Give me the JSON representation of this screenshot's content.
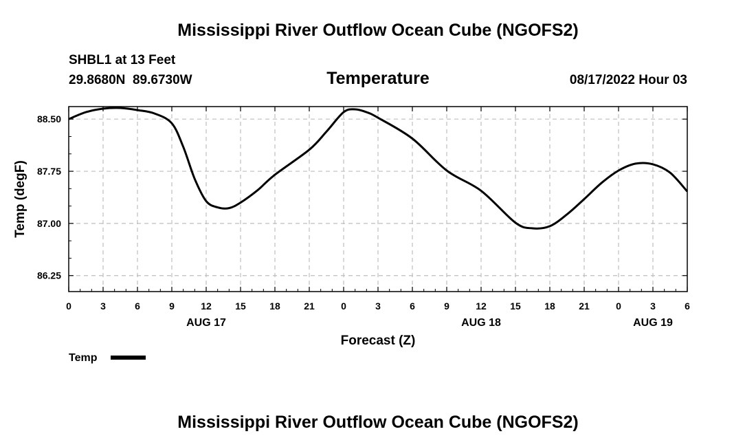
{
  "title": "Mississippi River Outflow Ocean Cube (NGOFS2)",
  "station": {
    "name": "SHBL1 at 13 Feet",
    "coords": "29.8680N  89.6730W"
  },
  "run_time": "08/17/2022 Hour 03",
  "footer_title": "Mississippi River Outflow Ocean Cube (NGOFS2)",
  "chart_data": {
    "type": "line",
    "title": "Temperature",
    "xlabel": "Forecast (Z)",
    "ylabel": "Temp (degF)",
    "xlim": [
      0,
      54
    ],
    "ylim": [
      86.02,
      88.68
    ],
    "grid": true,
    "x_ticks": [
      0,
      3,
      6,
      9,
      12,
      15,
      18,
      21,
      24,
      27,
      30,
      33,
      36,
      39,
      42,
      45,
      48,
      51,
      54
    ],
    "x_tick_labels": [
      "0",
      "3",
      "6",
      "9",
      "12",
      "15",
      "18",
      "21",
      "0",
      "3",
      "6",
      "9",
      "12",
      "15",
      "18",
      "21",
      "0",
      "3",
      "6"
    ],
    "date_labels": [
      {
        "x": 12,
        "label": "AUG 17"
      },
      {
        "x": 36,
        "label": "AUG 18"
      },
      {
        "x": 51,
        "label": "AUG 19"
      }
    ],
    "y_ticks": [
      86.25,
      87.0,
      87.75,
      88.5
    ],
    "y_tick_labels": [
      "86.25",
      "87.00",
      "87.75",
      "88.50"
    ],
    "legend": [
      {
        "name": "Temp",
        "color": "#000000"
      }
    ],
    "series": [
      {
        "name": "Temp",
        "x": [
          0,
          1.5,
          3,
          4.5,
          6,
          7.5,
          9,
          10,
          11,
          12,
          13,
          14,
          15,
          16.5,
          18,
          21,
          22.5,
          24,
          25,
          26,
          27,
          30,
          33,
          36,
          39,
          40.5,
          42,
          43.5,
          45,
          46.5,
          48,
          49.5,
          51,
          52.5,
          54
        ],
        "values": [
          88.5,
          88.6,
          88.65,
          88.66,
          88.63,
          88.58,
          88.44,
          88.1,
          87.64,
          87.32,
          87.23,
          87.22,
          87.3,
          87.48,
          87.7,
          88.06,
          88.32,
          88.6,
          88.64,
          88.6,
          88.52,
          88.22,
          87.76,
          87.47,
          87.01,
          86.93,
          86.96,
          87.13,
          87.35,
          87.58,
          87.76,
          87.86,
          87.85,
          87.73,
          87.46
        ]
      }
    ]
  }
}
